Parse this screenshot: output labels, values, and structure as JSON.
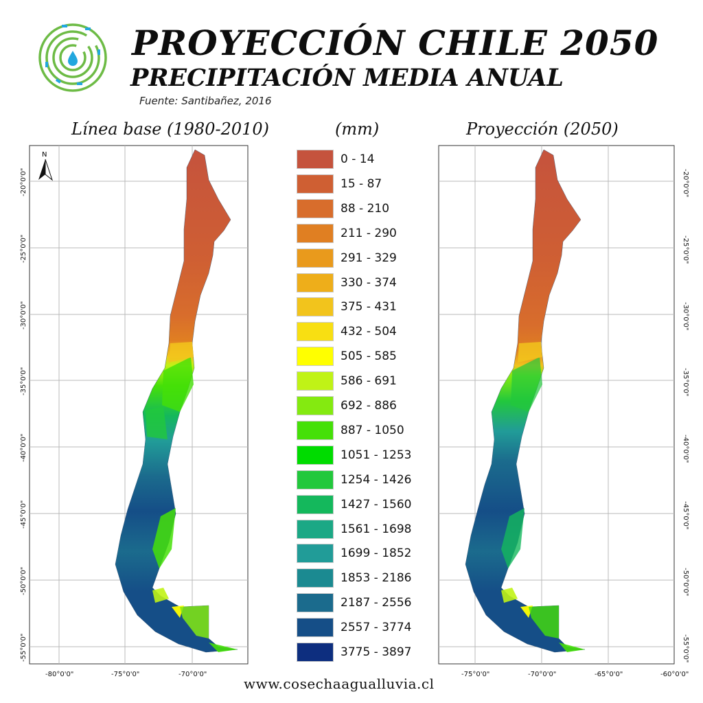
{
  "header": {
    "title": "PROYECCIÓN CHILE 2050",
    "subtitle": "PRECIPITACIÓN MEDIA ANUAL",
    "source": "Fuente: Santibañez, 2016"
  },
  "logo": {
    "icon": "water-drop-maze-icon",
    "colors": [
      "#6dbb45",
      "#22a7de"
    ]
  },
  "panels": {
    "left_title": "Línea base (1980-2010)",
    "units_title": "(mm)",
    "right_title": "Proyección (2050)"
  },
  "north_arrow": {
    "label": "N"
  },
  "left_map": {
    "lat_labels": [
      "-20°0'0\"",
      "-25°0'0\"",
      "-30°0'0\"",
      "-35°0'0\"",
      "-40°0'0\"",
      "-45°0'0\"",
      "-50°0'0\"",
      "-55°0'0\""
    ],
    "lon_labels": [
      "-80°0'0\"",
      "-75°0'0\"",
      "-70°0'0\""
    ]
  },
  "right_map": {
    "lat_labels": [
      "-20°0'0\"",
      "-25°0'0\"",
      "-30°0'0\"",
      "-35°0'0\"",
      "-40°0'0\"",
      "-45°0'0\"",
      "-50°0'0\"",
      "-55°0'0\""
    ],
    "lon_labels": [
      "-75°0'0\"",
      "-70°0'0\"",
      "-65°0'0\"",
      "-60°0'0\""
    ]
  },
  "legend": {
    "items": [
      {
        "label": "0 - 14",
        "color": "#c5533d"
      },
      {
        "label": "15 - 87",
        "color": "#cf5f33"
      },
      {
        "label": "88 - 210",
        "color": "#d86d2c"
      },
      {
        "label": "211 - 290",
        "color": "#e07f22"
      },
      {
        "label": "291 - 329",
        "color": "#e99a1c"
      },
      {
        "label": "330 - 374",
        "color": "#eeae1a"
      },
      {
        "label": "375 - 431",
        "color": "#f2c41c"
      },
      {
        "label": "432 - 504",
        "color": "#f8df12"
      },
      {
        "label": "505 - 585",
        "color": "#ffff00"
      },
      {
        "label": "586 - 691",
        "color": "#c0f316"
      },
      {
        "label": "692 - 886",
        "color": "#84ea10"
      },
      {
        "label": "887 - 1050",
        "color": "#45e008"
      },
      {
        "label": "1051 - 1253",
        "color": "#00dc00"
      },
      {
        "label": "1254 - 1426",
        "color": "#22c83c"
      },
      {
        "label": "1427 - 1560",
        "color": "#14b85c"
      },
      {
        "label": "1561 - 1698",
        "color": "#1ba885"
      },
      {
        "label": "1699 - 1852",
        "color": "#219c98"
      },
      {
        "label": "1853 - 2186",
        "color": "#1b8a91"
      },
      {
        "label": "2187 - 2556",
        "color": "#1b6b8d"
      },
      {
        "label": "2557 - 3774",
        "color": "#154e87"
      },
      {
        "label": "3775 - 3897",
        "color": "#0d2e7f"
      }
    ]
  },
  "footer": {
    "url": "www.cosechaagualluvia.cl"
  }
}
